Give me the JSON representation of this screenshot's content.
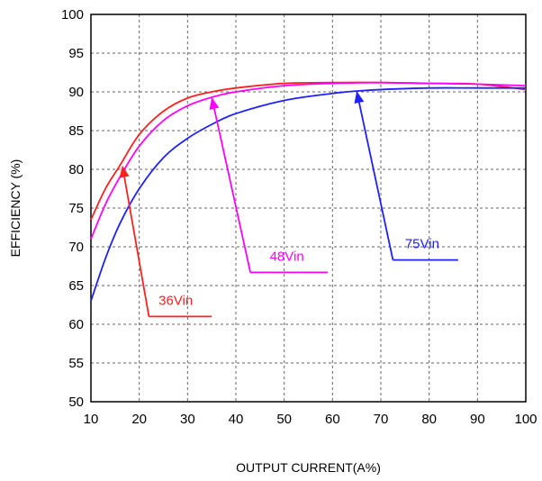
{
  "chart_data": {
    "type": "line",
    "xlabel": "OUTPUT CURRENT(A%)",
    "ylabel": "EFFICIENCY (%)",
    "xlim": [
      10,
      100
    ],
    "ylim": [
      50,
      100
    ],
    "xticks": [
      10,
      20,
      30,
      40,
      50,
      60,
      70,
      80,
      90,
      100
    ],
    "yticks": [
      50,
      55,
      60,
      65,
      70,
      75,
      80,
      85,
      90,
      95,
      100
    ],
    "grid": true,
    "grid_style": "dashed",
    "series": [
      {
        "name": "36Vin",
        "color": "#ff2020",
        "x": [
          10,
          13,
          16,
          20,
          25,
          30,
          35,
          40,
          50,
          60,
          70,
          80,
          90,
          100
        ],
        "y": [
          73.5,
          77.5,
          80.5,
          84.5,
          87.5,
          89.2,
          90.0,
          90.5,
          91.1,
          91.2,
          91.2,
          91.1,
          91.0,
          90.3
        ]
      },
      {
        "name": "48Vin",
        "color": "#ff00ff",
        "x": [
          10,
          13,
          16,
          20,
          25,
          30,
          35,
          40,
          50,
          60,
          70,
          80,
          90,
          100
        ],
        "y": [
          71.0,
          75.5,
          79.0,
          83.0,
          86.3,
          88.2,
          89.3,
          90.0,
          90.8,
          91.1,
          91.2,
          91.1,
          91.0,
          90.8
        ]
      },
      {
        "name": "75Vin",
        "color": "#2020ff",
        "x": [
          10,
          13,
          16,
          20,
          25,
          30,
          35,
          40,
          50,
          60,
          65,
          70,
          80,
          90,
          100
        ],
        "y": [
          63.0,
          68.5,
          73.0,
          77.5,
          81.5,
          84.0,
          85.8,
          87.2,
          88.9,
          89.8,
          90.1,
          90.3,
          90.5,
          90.5,
          90.5
        ]
      }
    ],
    "annotations": [
      {
        "series": "36Vin",
        "text": "36Vin",
        "color": "#ff2020",
        "label_anchor": [
          22,
          61
        ],
        "shelf_end_x": 35,
        "arrow_target": [
          16.5,
          80.5
        ],
        "text_pos": [
          24,
          62.5
        ]
      },
      {
        "series": "48Vin",
        "text": "48Vin",
        "color": "#ff00ff",
        "label_anchor": [
          43,
          66.7
        ],
        "shelf_end_x": 59,
        "arrow_target": [
          35,
          89.3
        ],
        "text_pos": [
          47,
          68.2
        ]
      },
      {
        "series": "75Vin",
        "text": "75Vin",
        "color": "#2020ff",
        "label_anchor": [
          72.5,
          68.3
        ],
        "shelf_end_x": 86,
        "arrow_target": [
          65,
          90.1
        ],
        "text_pos": [
          75,
          69.8
        ]
      }
    ]
  }
}
